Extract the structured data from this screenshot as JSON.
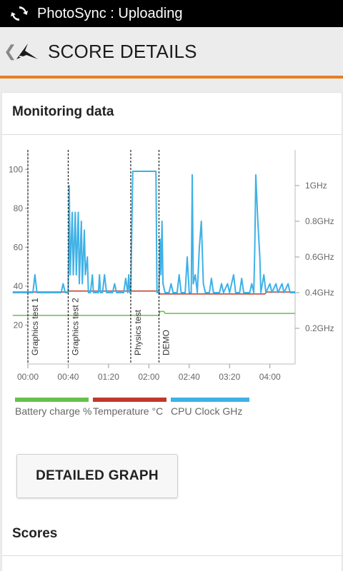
{
  "status_bar": {
    "title": "PhotoSync : Uploading",
    "icon": "sync-icon"
  },
  "app_bar": {
    "title": "SCORE DETAILS",
    "back_icon": "chevron-left-icon",
    "logo_icon": "3dmark-logo-icon"
  },
  "colors": {
    "accent": "#e67e22",
    "battery": "#6abf4b",
    "temperature": "#c0392b",
    "cpu": "#3eb1e6"
  },
  "card": {
    "title": "Monitoring data",
    "button_label": "DETAILED GRAPH",
    "scores_title": "Scores"
  },
  "chart_data": {
    "type": "line",
    "x_ticks": [
      "00:00",
      "00:40",
      "01:20",
      "02:00",
      "02:40",
      "03:20",
      "04:00"
    ],
    "x_range_seconds": [
      0,
      265
    ],
    "y_left_ticks": [
      20,
      40,
      60,
      80,
      100
    ],
    "y_left_range": [
      0,
      110
    ],
    "y_right_ticks": [
      "0.2GHz",
      "0.4GHz",
      "0.6GHz",
      "0.8GHz",
      "1GHz"
    ],
    "y_right_range_ghz": [
      0,
      1.2
    ],
    "markers": [
      {
        "label": "Graphics test 1",
        "x": 0
      },
      {
        "label": "Graphics test 2",
        "x": 40
      },
      {
        "label": "Physics test",
        "x": 102
      },
      {
        "label": "DEMO",
        "x": 130
      }
    ],
    "legend": [
      {
        "label": "Battery charge %",
        "color_key": "battery"
      },
      {
        "label": "Temperature °C",
        "color_key": "temperature"
      },
      {
        "label": "CPU Clock GHz",
        "color_key": "cpu"
      }
    ],
    "series": [
      {
        "name": "Battery charge %",
        "color_key": "battery",
        "points": [
          [
            -15,
            25
          ],
          [
            130,
            25
          ],
          [
            131,
            27
          ],
          [
            135,
            27
          ],
          [
            136,
            26
          ],
          [
            265,
            26
          ]
        ]
      },
      {
        "name": "Temperature °C",
        "color_key": "temperature",
        "points": [
          [
            -15,
            37
          ],
          [
            40,
            37
          ],
          [
            41,
            37.5
          ],
          [
            130,
            37.5
          ],
          [
            131,
            36
          ],
          [
            235,
            36
          ],
          [
            237,
            37
          ],
          [
            265,
            37
          ]
        ]
      },
      {
        "name": "CPU Clock GHz",
        "color_key": "cpu",
        "points": [
          [
            -15,
            0.4
          ],
          [
            5,
            0.4
          ],
          [
            7,
            0.5
          ],
          [
            9,
            0.4
          ],
          [
            33,
            0.4
          ],
          [
            35,
            0.45
          ],
          [
            37,
            0.4
          ],
          [
            40,
            0.4
          ],
          [
            41,
            1.0
          ],
          [
            42,
            0.5
          ],
          [
            44,
            0.85
          ],
          [
            45,
            0.5
          ],
          [
            47,
            0.85
          ],
          [
            48,
            0.5
          ],
          [
            50,
            0.85
          ],
          [
            51,
            0.45
          ],
          [
            53,
            0.8
          ],
          [
            54,
            0.45
          ],
          [
            56,
            0.75
          ],
          [
            57,
            0.5
          ],
          [
            59,
            0.6
          ],
          [
            60,
            0.4
          ],
          [
            62,
            0.4
          ],
          [
            64,
            0.5
          ],
          [
            65,
            0.4
          ],
          [
            70,
            0.4
          ],
          [
            71,
            0.5
          ],
          [
            72,
            0.4
          ],
          [
            74,
            0.4
          ],
          [
            76,
            0.5
          ],
          [
            78,
            0.4
          ],
          [
            84,
            0.4
          ],
          [
            86,
            0.45
          ],
          [
            88,
            0.4
          ],
          [
            95,
            0.4
          ],
          [
            97,
            0.48
          ],
          [
            99,
            0.4
          ],
          [
            100,
            0.5
          ],
          [
            101,
            0.4
          ],
          [
            102,
            0.4
          ],
          [
            104,
            1.08
          ],
          [
            127,
            1.08
          ],
          [
            128,
            0.4
          ],
          [
            130,
            0.4
          ],
          [
            131,
            0.7
          ],
          [
            132,
            0.5
          ],
          [
            133,
            0.8
          ],
          [
            134,
            0.45
          ],
          [
            136,
            0.4
          ],
          [
            140,
            0.4
          ],
          [
            142,
            0.45
          ],
          [
            144,
            0.4
          ],
          [
            148,
            0.4
          ],
          [
            150,
            0.5
          ],
          [
            152,
            0.4
          ],
          [
            156,
            0.4
          ],
          [
            158,
            0.6
          ],
          [
            160,
            0.4
          ],
          [
            162,
            0.4
          ],
          [
            163,
            1.06
          ],
          [
            164,
            0.45
          ],
          [
            166,
            0.5
          ],
          [
            168,
            0.4
          ],
          [
            170,
            0.65
          ],
          [
            172,
            0.8
          ],
          [
            174,
            0.45
          ],
          [
            176,
            0.4
          ],
          [
            180,
            0.4
          ],
          [
            182,
            0.48
          ],
          [
            184,
            0.4
          ],
          [
            190,
            0.4
          ],
          [
            192,
            0.45
          ],
          [
            194,
            0.4
          ],
          [
            198,
            0.45
          ],
          [
            200,
            0.4
          ],
          [
            204,
            0.5
          ],
          [
            206,
            0.4
          ],
          [
            210,
            0.4
          ],
          [
            212,
            0.48
          ],
          [
            214,
            0.4
          ],
          [
            220,
            0.4
          ],
          [
            222,
            0.45
          ],
          [
            224,
            0.4
          ],
          [
            225,
            0.65
          ],
          [
            226,
            1.06
          ],
          [
            228,
            0.8
          ],
          [
            230,
            0.6
          ],
          [
            231,
            0.4
          ],
          [
            234,
            0.5
          ],
          [
            236,
            0.4
          ],
          [
            240,
            0.45
          ],
          [
            242,
            0.4
          ],
          [
            246,
            0.45
          ],
          [
            248,
            0.4
          ],
          [
            252,
            0.45
          ],
          [
            254,
            0.4
          ],
          [
            258,
            0.45
          ],
          [
            260,
            0.4
          ],
          [
            265,
            0.4
          ]
        ]
      }
    ]
  }
}
